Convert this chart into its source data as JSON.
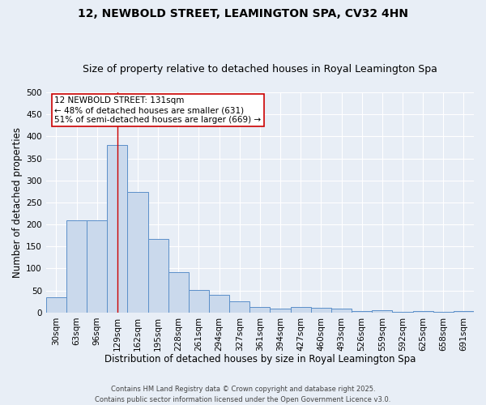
{
  "title": "12, NEWBOLD STREET, LEAMINGTON SPA, CV32 4HN",
  "subtitle": "Size of property relative to detached houses in Royal Leamington Spa",
  "xlabel": "Distribution of detached houses by size in Royal Leamington Spa",
  "ylabel": "Number of detached properties",
  "categories": [
    "30sqm",
    "63sqm",
    "96sqm",
    "129sqm",
    "162sqm",
    "195sqm",
    "228sqm",
    "261sqm",
    "294sqm",
    "327sqm",
    "361sqm",
    "394sqm",
    "427sqm",
    "460sqm",
    "493sqm",
    "526sqm",
    "559sqm",
    "592sqm",
    "625sqm",
    "658sqm",
    "691sqm"
  ],
  "values": [
    35,
    210,
    210,
    380,
    273,
    168,
    92,
    52,
    41,
    25,
    13,
    8,
    12,
    11,
    9,
    4,
    5,
    1,
    4,
    2,
    4
  ],
  "bar_color": "#cad9ec",
  "bar_edge_color": "#5b8fc9",
  "bg_color": "#e8eef6",
  "grid_color": "#ffffff",
  "annotation_line1": "12 NEWBOLD STREET: 131sqm",
  "annotation_line2": "← 48% of detached houses are smaller (631)",
  "annotation_line3": "51% of semi-detached houses are larger (669) →",
  "annotation_box_color": "#ffffff",
  "annotation_box_edge_color": "#cc0000",
  "vline_x_index": 3,
  "vline_color": "#cc0000",
  "footer_text": "Contains HM Land Registry data © Crown copyright and database right 2025.\nContains public sector information licensed under the Open Government Licence v3.0.",
  "ylim": [
    0,
    500
  ],
  "yticks": [
    0,
    50,
    100,
    150,
    200,
    250,
    300,
    350,
    400,
    450,
    500
  ],
  "title_fontsize": 10,
  "subtitle_fontsize": 9,
  "axis_label_fontsize": 8.5,
  "tick_fontsize": 7.5,
  "annotation_fontsize": 7.5,
  "footer_fontsize": 6
}
